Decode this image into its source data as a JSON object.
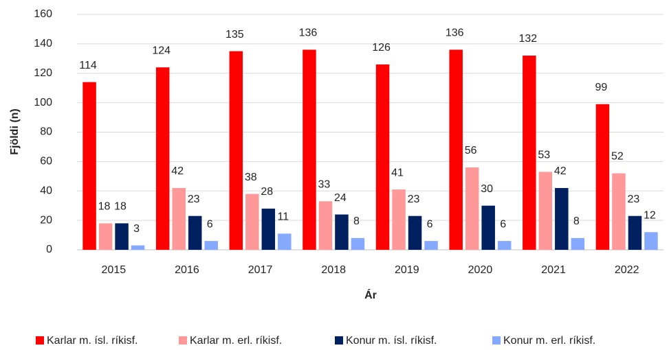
{
  "chart_data": {
    "type": "bar",
    "x_label": "Ár",
    "y_label": "Fjöldi (n)",
    "categories": [
      "2015",
      "2016",
      "2017",
      "2018",
      "2019",
      "2020",
      "2021",
      "2022"
    ],
    "series": [
      {
        "name": "Karlar m. ísl. ríkisf.",
        "color": "#ff0000",
        "values": [
          114,
          124,
          135,
          136,
          126,
          136,
          132,
          99
        ]
      },
      {
        "name": "Karlar m. erl. ríkisf.",
        "color": "#ff9999",
        "values": [
          18,
          42,
          38,
          33,
          41,
          56,
          53,
          52
        ]
      },
      {
        "name": "Konur m. ísl. ríkisf.",
        "color": "#002060",
        "values": [
          18,
          23,
          28,
          24,
          23,
          30,
          42,
          23
        ]
      },
      {
        "name": "Konur m. erl. ríkisf.",
        "color": "#84a9ff",
        "values": [
          3,
          6,
          11,
          8,
          6,
          6,
          8,
          12
        ]
      }
    ],
    "ylim": [
      0,
      160
    ],
    "yticks": [
      0,
      20,
      40,
      60,
      80,
      100,
      120,
      140,
      160
    ],
    "grid": true,
    "legend": "bottom"
  }
}
